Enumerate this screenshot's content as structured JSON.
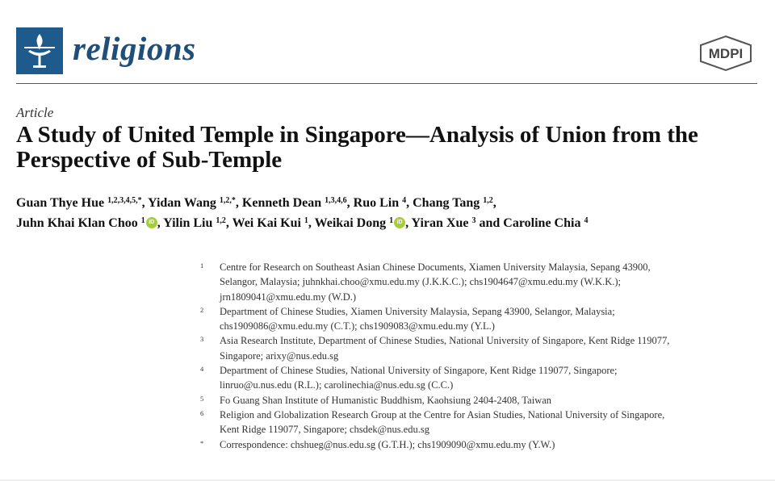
{
  "journal": {
    "name": "religions",
    "publisher": "MDPI"
  },
  "article_type": "Article",
  "title": "A Study of United Temple in Singapore—Analysis of Union from the Perspective of Sub-Temple",
  "authors": [
    {
      "name": "Guan Thye Hue",
      "sup": "1,2,3,4,5,*",
      "orcid": false,
      "sep": ", "
    },
    {
      "name": "Yidan Wang",
      "sup": "1,2,*",
      "orcid": false,
      "sep": ", "
    },
    {
      "name": "Kenneth Dean",
      "sup": "1,3,4,6",
      "orcid": false,
      "sep": ", "
    },
    {
      "name": "Ruo Lin",
      "sup": "4",
      "orcid": false,
      "sep": ", "
    },
    {
      "name": "Chang Tang",
      "sup": "1,2",
      "orcid": false,
      "sep": ","
    },
    {
      "name": "Juhn Khai Klan Choo",
      "sup": "1",
      "orcid": true,
      "sep": ", "
    },
    {
      "name": "Yilin Liu",
      "sup": "1,2",
      "orcid": false,
      "sep": ", "
    },
    {
      "name": "Wei Kai Kui",
      "sup": "1",
      "orcid": false,
      "sep": ", "
    },
    {
      "name": "Weikai Dong",
      "sup": "1",
      "orcid": true,
      "sep": ", "
    },
    {
      "name": "Yiran Xue",
      "sup": "3",
      "orcid": false,
      "sep": " and "
    },
    {
      "name": "Caroline Chia",
      "sup": "4",
      "orcid": false,
      "sep": ""
    }
  ],
  "affiliations": [
    {
      "num": "1",
      "lines": [
        "Centre for Research on Southeast Asian Chinese Documents, Xiamen University Malaysia, Sepang 43900,",
        "Selangor, Malaysia; juhnkhai.choo@xmu.edu.my (J.K.K.C.); chs1904647@xmu.edu.my (W.K.K.);",
        "jrn1809041@xmu.edu.my (W.D.)"
      ]
    },
    {
      "num": "2",
      "lines": [
        "Department of Chinese Studies, Xiamen University Malaysia, Sepang 43900, Selangor, Malaysia;",
        "chs1909086@xmu.edu.my (C.T.); chs1909083@xmu.edu.my (Y.L.)"
      ]
    },
    {
      "num": "3",
      "lines": [
        "Asia Research Institute, Department of Chinese Studies, National University of Singapore, Kent Ridge 119077,",
        "Singapore; arixy@nus.edu.sg"
      ]
    },
    {
      "num": "4",
      "lines": [
        "Department of Chinese Studies, National University of Singapore, Kent Ridge 119077, Singapore;",
        "linruo@u.nus.edu (R.L.); carolinechia@nus.edu.sg (C.C.)"
      ]
    },
    {
      "num": "5",
      "lines": [
        "Fo Guang Shan Institute of Humanistic Buddhism, Kaohsiung 2404-2408, Taiwan"
      ]
    },
    {
      "num": "6",
      "lines": [
        "Religion and Globalization Research Group at the Centre for Asian Studies, National University of Singapore,",
        "Kent Ridge 119077, Singapore; chsdek@nus.edu.sg"
      ]
    },
    {
      "num": "*",
      "lines": [
        "Correspondence: chshueg@nus.edu.sg (G.T.H.); chs1909090@xmu.edu.my (Y.W.)"
      ]
    }
  ],
  "colors": {
    "journal_blue": "#1e5a8c",
    "orcid_green": "#a6ce39"
  }
}
